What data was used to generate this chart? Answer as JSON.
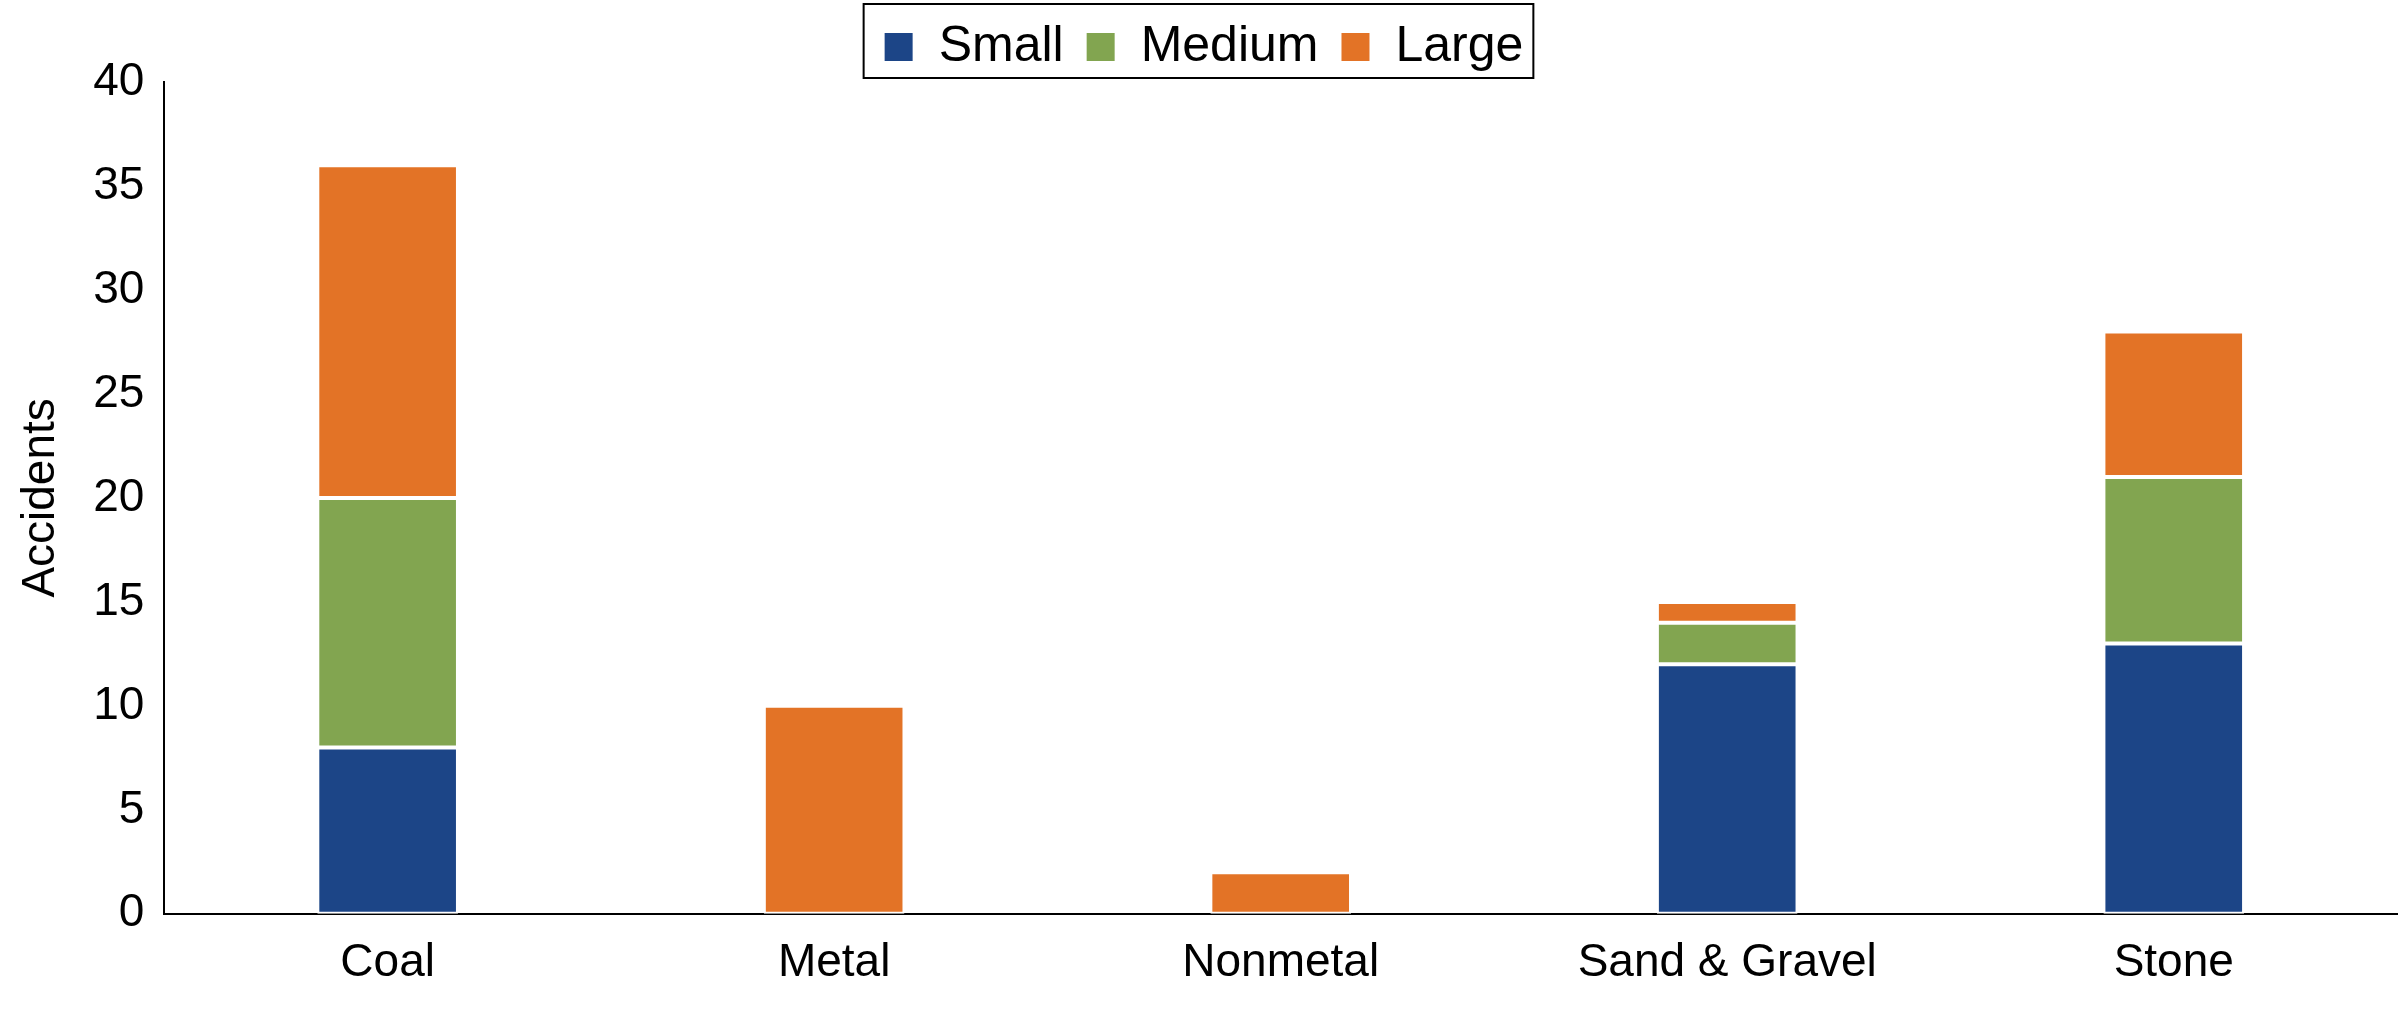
{
  "chart_data": {
    "type": "bar",
    "stacked": true,
    "ylabel": "Accidents",
    "categories": [
      "Coal",
      "Metal",
      "Nonmetal",
      "Sand & Gravel",
      "Stone"
    ],
    "series": [
      {
        "name": "Small",
        "color": "#1c4587",
        "values": [
          8,
          0,
          0,
          12,
          13
        ]
      },
      {
        "name": "Medium",
        "color": "#82a550",
        "values": [
          12,
          0,
          0,
          2,
          8
        ]
      },
      {
        "name": "Large",
        "color": "#e37326",
        "values": [
          16,
          10,
          2,
          1,
          7
        ]
      }
    ],
    "ylim": [
      0,
      40
    ],
    "yticks": [
      0,
      5,
      10,
      15,
      20,
      25,
      30,
      35,
      40
    ],
    "grid": false,
    "legend": "top"
  }
}
